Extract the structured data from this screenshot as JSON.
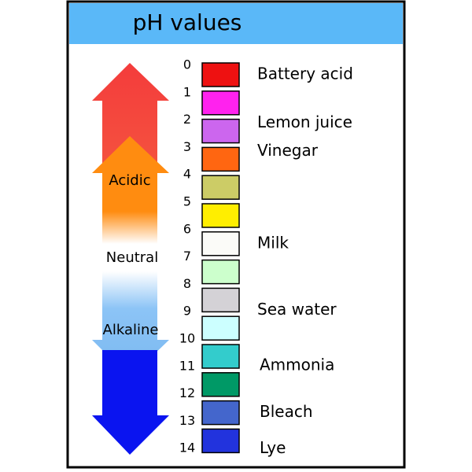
{
  "header": {
    "title": "pH values"
  },
  "arrows": {
    "acidic": "Acidic",
    "neutral": "Neutral",
    "alkaline": "Alkaline"
  },
  "scale_numbers": [
    0,
    1,
    2,
    3,
    4,
    5,
    6,
    7,
    8,
    9,
    10,
    11,
    12,
    13,
    14
  ],
  "swatches": [
    {
      "color": "#ee1111",
      "label": "Battery acid"
    },
    {
      "color": "#ff22ee"
    },
    {
      "color": "#cc66ee",
      "label": "Lemon juice"
    },
    {
      "color": "#ff6611",
      "label": "Vinegar"
    },
    {
      "color": "#cccc66"
    },
    {
      "color": "#ffee00"
    },
    {
      "color": "#fbfbf8",
      "label": "Milk"
    },
    {
      "color": "#ccffcc"
    },
    {
      "color": "#d4d2d6",
      "label": "Sea water"
    },
    {
      "color": "#ccffff"
    },
    {
      "color": "#33cccc",
      "label": "Ammonia"
    },
    {
      "color": "#009966"
    },
    {
      "color": "#4466cc",
      "label": "Bleach"
    },
    {
      "color": "#2233dd",
      "label": "Lye"
    }
  ]
}
